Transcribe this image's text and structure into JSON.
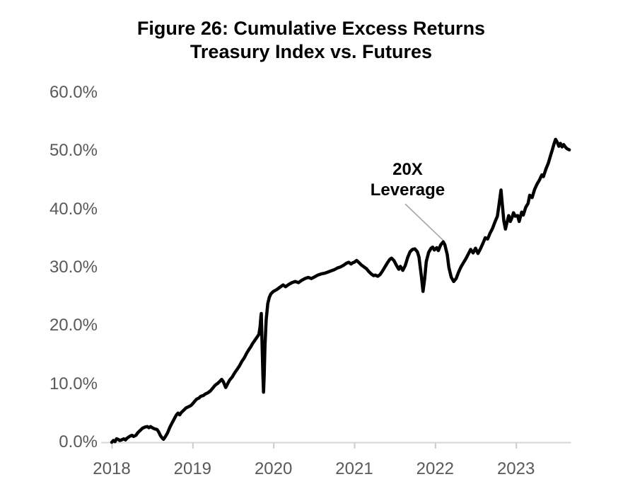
{
  "colors": {
    "series_line": "#000000",
    "axis_line": "#d6d6d6",
    "tick_mark": "#cccccc",
    "axis_label": "#595959",
    "title_text": "#000000",
    "leader_line": "#a6a6a6",
    "background": "#ffffff"
  },
  "chart_data": {
    "type": "line",
    "title": "Figure 26: Cumulative Excess Returns",
    "subtitle": "Treasury Index vs. Futures",
    "xlabel": "",
    "ylabel": "",
    "xlim": [
      2017.87,
      2023.68
    ],
    "ylim": [
      0,
      60
    ],
    "grid": false,
    "legend_position": "none",
    "y_ticks": [
      {
        "v": 60,
        "label": "60.0%"
      },
      {
        "v": 50,
        "label": "50.0%"
      },
      {
        "v": 40,
        "label": "40.0%"
      },
      {
        "v": 30,
        "label": "30.0%"
      },
      {
        "v": 20,
        "label": "20.0%"
      },
      {
        "v": 10,
        "label": "10.0%"
      },
      {
        "v": 0,
        "label": "0.0%"
      }
    ],
    "x_ticks": [
      {
        "v": 2018,
        "label": "2018"
      },
      {
        "v": 2019,
        "label": "2019"
      },
      {
        "v": 2020,
        "label": "2020"
      },
      {
        "v": 2021,
        "label": "2021"
      },
      {
        "v": 2022,
        "label": "2022"
      },
      {
        "v": 2023,
        "label": "2023"
      }
    ],
    "annotation": {
      "text_lines": [
        "20X",
        "Leverage"
      ],
      "text_anchor": {
        "x": 2021.66,
        "y": 41.5
      },
      "leader_start": {
        "x": 2021.63,
        "y": 40.9
      },
      "leader_end": {
        "x": 2022.12,
        "y": 34.4
      }
    },
    "series": [
      {
        "name": "20X Leverage",
        "color": "#000000",
        "points": [
          [
            2018.0,
            0.0
          ],
          [
            2018.02,
            0.3
          ],
          [
            2018.04,
            0.1
          ],
          [
            2018.06,
            0.6
          ],
          [
            2018.08,
            0.5
          ],
          [
            2018.1,
            0.3
          ],
          [
            2018.12,
            0.4
          ],
          [
            2018.15,
            0.6
          ],
          [
            2018.17,
            0.4
          ],
          [
            2018.19,
            0.7
          ],
          [
            2018.22,
            1.0
          ],
          [
            2018.25,
            1.2
          ],
          [
            2018.27,
            1.0
          ],
          [
            2018.3,
            1.2
          ],
          [
            2018.32,
            1.6
          ],
          [
            2018.35,
            2.0
          ],
          [
            2018.38,
            2.4
          ],
          [
            2018.41,
            2.6
          ],
          [
            2018.44,
            2.7
          ],
          [
            2018.46,
            2.5
          ],
          [
            2018.48,
            2.7
          ],
          [
            2018.5,
            2.5
          ],
          [
            2018.53,
            2.3
          ],
          [
            2018.56,
            2.2
          ],
          [
            2018.58,
            1.8
          ],
          [
            2018.6,
            1.2
          ],
          [
            2018.62,
            0.8
          ],
          [
            2018.64,
            0.5
          ],
          [
            2018.66,
            0.9
          ],
          [
            2018.69,
            1.6
          ],
          [
            2018.72,
            2.6
          ],
          [
            2018.75,
            3.4
          ],
          [
            2018.78,
            4.2
          ],
          [
            2018.8,
            4.7
          ],
          [
            2018.82,
            5.0
          ],
          [
            2018.84,
            4.7
          ],
          [
            2018.86,
            5.1
          ],
          [
            2018.89,
            5.5
          ],
          [
            2018.92,
            5.9
          ],
          [
            2018.95,
            6.1
          ],
          [
            2018.98,
            6.3
          ],
          [
            2019.0,
            6.6
          ],
          [
            2019.03,
            7.1
          ],
          [
            2019.05,
            7.4
          ],
          [
            2019.08,
            7.6
          ],
          [
            2019.1,
            7.9
          ],
          [
            2019.13,
            8.0
          ],
          [
            2019.16,
            8.3
          ],
          [
            2019.19,
            8.5
          ],
          [
            2019.22,
            8.8
          ],
          [
            2019.25,
            9.3
          ],
          [
            2019.28,
            9.8
          ],
          [
            2019.31,
            10.1
          ],
          [
            2019.34,
            10.5
          ],
          [
            2019.36,
            10.8
          ],
          [
            2019.38,
            10.4
          ],
          [
            2019.41,
            9.4
          ],
          [
            2019.44,
            10.2
          ],
          [
            2019.46,
            10.7
          ],
          [
            2019.49,
            11.2
          ],
          [
            2019.52,
            11.9
          ],
          [
            2019.55,
            12.5
          ],
          [
            2019.58,
            13.1
          ],
          [
            2019.61,
            13.9
          ],
          [
            2019.64,
            14.5
          ],
          [
            2019.67,
            15.3
          ],
          [
            2019.7,
            16.0
          ],
          [
            2019.72,
            16.4
          ],
          [
            2019.74,
            16.9
          ],
          [
            2019.76,
            17.3
          ],
          [
            2019.78,
            17.7
          ],
          [
            2019.8,
            18.1
          ],
          [
            2019.82,
            18.5
          ],
          [
            2019.835,
            19.8
          ],
          [
            2019.845,
            21.5
          ],
          [
            2019.85,
            22.1
          ],
          [
            2019.86,
            16.5
          ],
          [
            2019.87,
            11.5
          ],
          [
            2019.878,
            8.6
          ],
          [
            2019.886,
            11.5
          ],
          [
            2019.895,
            16.5
          ],
          [
            2019.91,
            21.0
          ],
          [
            2019.93,
            23.8
          ],
          [
            2019.95,
            24.9
          ],
          [
            2019.97,
            25.5
          ],
          [
            2020.0,
            25.9
          ],
          [
            2020.04,
            26.2
          ],
          [
            2020.08,
            26.6
          ],
          [
            2020.12,
            27.0
          ],
          [
            2020.15,
            26.7
          ],
          [
            2020.19,
            27.1
          ],
          [
            2020.23,
            27.4
          ],
          [
            2020.27,
            27.6
          ],
          [
            2020.31,
            27.4
          ],
          [
            2020.35,
            27.8
          ],
          [
            2020.39,
            28.1
          ],
          [
            2020.43,
            28.3
          ],
          [
            2020.47,
            28.1
          ],
          [
            2020.51,
            28.4
          ],
          [
            2020.55,
            28.7
          ],
          [
            2020.59,
            28.9
          ],
          [
            2020.63,
            29.0
          ],
          [
            2020.67,
            29.2
          ],
          [
            2020.71,
            29.4
          ],
          [
            2020.75,
            29.6
          ],
          [
            2020.79,
            29.9
          ],
          [
            2020.83,
            30.1
          ],
          [
            2020.87,
            30.4
          ],
          [
            2020.9,
            30.7
          ],
          [
            2020.93,
            30.9
          ],
          [
            2020.96,
            30.6
          ],
          [
            2020.98,
            30.8
          ],
          [
            2021.0,
            30.9
          ],
          [
            2021.03,
            31.2
          ],
          [
            2021.06,
            30.8
          ],
          [
            2021.09,
            30.4
          ],
          [
            2021.12,
            30.1
          ],
          [
            2021.15,
            29.8
          ],
          [
            2021.18,
            29.3
          ],
          [
            2021.21,
            28.9
          ],
          [
            2021.24,
            28.6
          ],
          [
            2021.26,
            28.7
          ],
          [
            2021.29,
            28.5
          ],
          [
            2021.32,
            28.8
          ],
          [
            2021.35,
            29.4
          ],
          [
            2021.38,
            30.1
          ],
          [
            2021.41,
            30.8
          ],
          [
            2021.44,
            31.4
          ],
          [
            2021.46,
            31.6
          ],
          [
            2021.49,
            31.2
          ],
          [
            2021.52,
            30.4
          ],
          [
            2021.55,
            29.7
          ],
          [
            2021.57,
            30.2
          ],
          [
            2021.6,
            29.5
          ],
          [
            2021.63,
            30.3
          ],
          [
            2021.66,
            31.7
          ],
          [
            2021.69,
            32.7
          ],
          [
            2021.72,
            33.1
          ],
          [
            2021.75,
            33.2
          ],
          [
            2021.78,
            32.7
          ],
          [
            2021.8,
            31.8
          ],
          [
            2021.83,
            28.5
          ],
          [
            2021.85,
            25.9
          ],
          [
            2021.87,
            28.0
          ],
          [
            2021.89,
            31.0
          ],
          [
            2021.92,
            32.6
          ],
          [
            2021.95,
            33.3
          ],
          [
            2021.97,
            33.5
          ],
          [
            2021.99,
            33.0
          ],
          [
            2022.02,
            33.4
          ],
          [
            2022.04,
            32.9
          ],
          [
            2022.07,
            33.9
          ],
          [
            2022.1,
            34.4
          ],
          [
            2022.12,
            33.9
          ],
          [
            2022.15,
            32.2
          ],
          [
            2022.17,
            30.0
          ],
          [
            2022.2,
            28.3
          ],
          [
            2022.23,
            27.6
          ],
          [
            2022.26,
            28.1
          ],
          [
            2022.29,
            29.2
          ],
          [
            2022.32,
            30.1
          ],
          [
            2022.35,
            30.8
          ],
          [
            2022.38,
            31.5
          ],
          [
            2022.41,
            32.3
          ],
          [
            2022.44,
            33.1
          ],
          [
            2022.47,
            32.5
          ],
          [
            2022.5,
            33.3
          ],
          [
            2022.53,
            32.4
          ],
          [
            2022.56,
            33.2
          ],
          [
            2022.59,
            34.1
          ],
          [
            2022.62,
            35.1
          ],
          [
            2022.65,
            34.9
          ],
          [
            2022.68,
            35.9
          ],
          [
            2022.71,
            36.7
          ],
          [
            2022.74,
            37.8
          ],
          [
            2022.77,
            38.8
          ],
          [
            2022.79,
            40.8
          ],
          [
            2022.815,
            43.3
          ],
          [
            2022.83,
            41.0
          ],
          [
            2022.85,
            38.0
          ],
          [
            2022.87,
            36.6
          ],
          [
            2022.89,
            37.8
          ],
          [
            2022.91,
            38.9
          ],
          [
            2022.93,
            37.9
          ],
          [
            2022.95,
            38.5
          ],
          [
            2022.97,
            39.4
          ],
          [
            2022.99,
            38.8
          ],
          [
            2023.02,
            38.9
          ],
          [
            2023.04,
            37.9
          ],
          [
            2023.07,
            39.5
          ],
          [
            2023.09,
            39.0
          ],
          [
            2023.12,
            40.3
          ],
          [
            2023.15,
            41.0
          ],
          [
            2023.17,
            42.4
          ],
          [
            2023.2,
            42.0
          ],
          [
            2023.23,
            43.4
          ],
          [
            2023.26,
            44.3
          ],
          [
            2023.29,
            45.0
          ],
          [
            2023.32,
            45.9
          ],
          [
            2023.34,
            45.6
          ],
          [
            2023.37,
            46.9
          ],
          [
            2023.4,
            47.9
          ],
          [
            2023.43,
            49.3
          ],
          [
            2023.45,
            50.2
          ],
          [
            2023.47,
            51.2
          ],
          [
            2023.49,
            52.0
          ],
          [
            2023.51,
            51.5
          ],
          [
            2023.53,
            50.8
          ],
          [
            2023.55,
            51.3
          ],
          [
            2023.57,
            50.7
          ],
          [
            2023.59,
            51.1
          ],
          [
            2023.61,
            50.7
          ],
          [
            2023.63,
            50.4
          ],
          [
            2023.66,
            50.2
          ]
        ]
      }
    ]
  }
}
